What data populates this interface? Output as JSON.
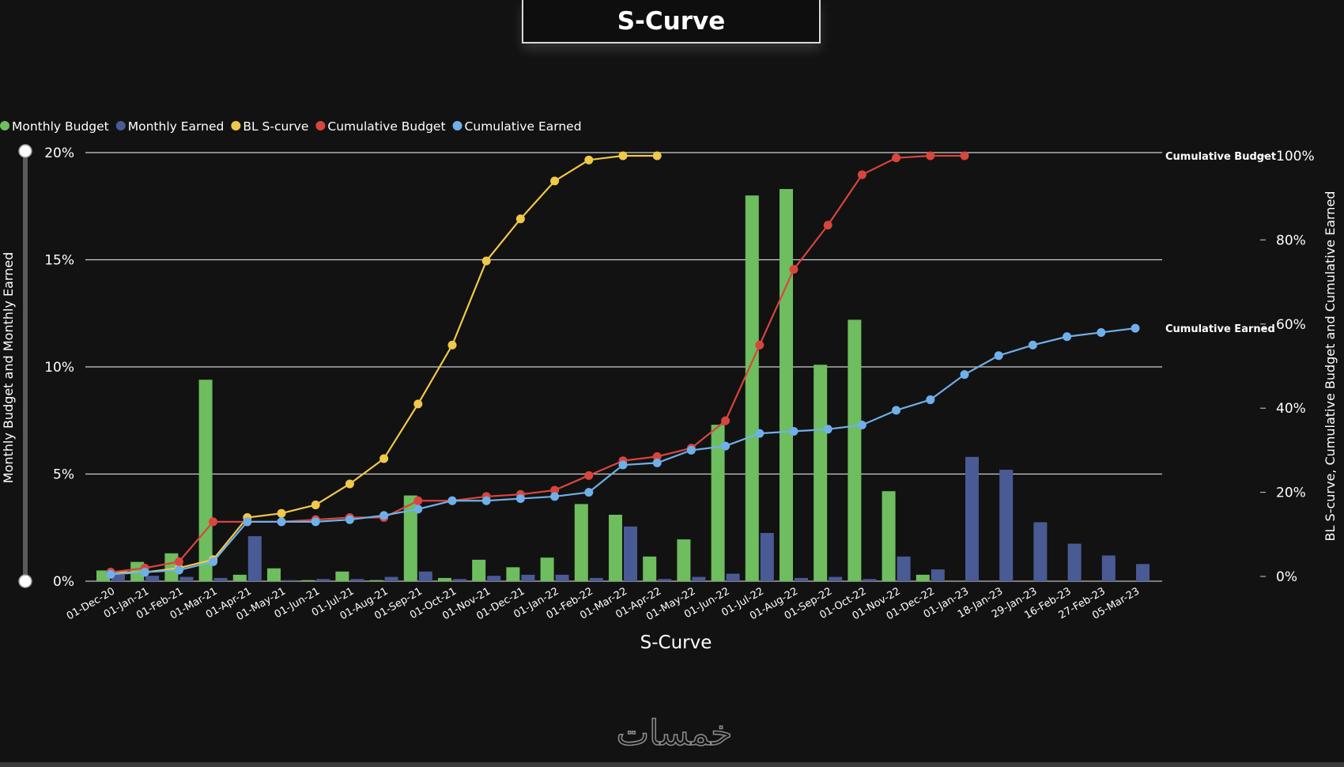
{
  "title": "S-Curve",
  "chart_data": {
    "type": "bar+line",
    "title": "S-Curve",
    "xlabel": "S-Curve",
    "ylabel_left": "Monthly Budget and Monthly Earned",
    "ylabel_right": "BL S-curve, Cumulative Budget and Cumulative Earned",
    "y_left_lim": [
      0,
      20
    ],
    "y_left_ticks": [
      "0%",
      "5%",
      "10%",
      "15%",
      "20%"
    ],
    "y_right_lim": [
      0,
      100
    ],
    "y_right_ticks": [
      "0%",
      "20%",
      "40%",
      "60%",
      "80%",
      "100%"
    ],
    "legend_position": "top-left",
    "grid": true,
    "categories": [
      "01-Dec-20",
      "01-Jan-21",
      "01-Feb-21",
      "01-Mar-21",
      "01-Apr-21",
      "01-May-21",
      "01-Jun-21",
      "01-Jul-21",
      "01-Aug-21",
      "01-Sep-21",
      "01-Oct-21",
      "01-Nov-21",
      "01-Dec-21",
      "01-Jan-22",
      "01-Feb-22",
      "01-Mar-22",
      "01-Apr-22",
      "01-May-22",
      "01-Jun-22",
      "01-Jul-22",
      "01-Aug-22",
      "01-Sep-22",
      "01-Oct-22",
      "01-Nov-22",
      "01-Dec-22",
      "01-Jan-23",
      "18-Jan-23",
      "29-Jan-23",
      "16-Feb-23",
      "27-Feb-23",
      "05-Mar-23"
    ],
    "series": [
      {
        "name": "Monthly Budget",
        "kind": "bar",
        "axis": "left",
        "color": "#6ebd5f",
        "values": [
          0.5,
          0.9,
          1.3,
          9.4,
          0.3,
          0.6,
          0.05,
          0.45,
          0.05,
          4.0,
          0.15,
          1.0,
          0.65,
          1.1,
          3.6,
          3.1,
          1.15,
          1.95,
          7.3,
          18.0,
          18.3,
          10.1,
          12.2,
          4.2,
          0.3,
          0,
          0,
          0,
          0,
          0,
          0
        ]
      },
      {
        "name": "Monthly Earned",
        "kind": "bar",
        "axis": "left",
        "color": "#4a5a94",
        "values": [
          0.3,
          0.25,
          0.2,
          0.15,
          2.1,
          0.05,
          0.1,
          0.1,
          0.2,
          0.45,
          0.1,
          0.25,
          0.3,
          0.3,
          0.15,
          2.55,
          0.1,
          0.2,
          0.35,
          2.25,
          0.15,
          0.2,
          0.1,
          1.15,
          0.55,
          5.8,
          5.2,
          2.75,
          1.75,
          1.2,
          0.8
        ]
      },
      {
        "name": "BL S-curve",
        "kind": "line",
        "axis": "right",
        "color": "#f0c84a",
        "values": [
          1,
          1,
          2,
          4,
          14,
          15,
          17,
          22,
          28,
          41,
          55,
          75,
          85,
          94,
          99,
          100,
          100,
          null,
          null,
          null,
          null,
          null,
          null,
          null,
          null,
          null,
          null,
          null,
          null,
          null,
          null
        ]
      },
      {
        "name": "Cumulative Budget",
        "kind": "line",
        "axis": "right",
        "color": "#d9453d",
        "end_label": "Cumulative Budget",
        "values": [
          1,
          2,
          3.5,
          13,
          13,
          13,
          13.5,
          14,
          14,
          18,
          18,
          19,
          19.5,
          20.5,
          24,
          27.5,
          28.5,
          30.5,
          37,
          55,
          73,
          83.5,
          95.5,
          99.5,
          100,
          100,
          null,
          null,
          null,
          null,
          null
        ]
      },
      {
        "name": "Cumulative Earned",
        "kind": "line",
        "axis": "right",
        "color": "#6fb0ea",
        "end_label": "Cumulative Earned",
        "values": [
          0.5,
          1,
          1.5,
          3.5,
          13,
          13,
          13,
          13.5,
          14.5,
          16,
          18,
          18,
          18.5,
          19,
          20,
          26.5,
          27,
          30,
          31,
          34,
          34.5,
          35,
          36,
          39.5,
          42,
          48,
          52.5,
          55,
          57,
          58,
          59
        ]
      }
    ]
  },
  "watermark_text": "خمسات"
}
